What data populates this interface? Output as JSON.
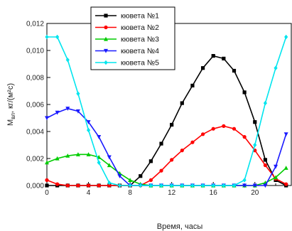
{
  "chart_data": {
    "type": "line",
    "xlabel": "Время, часы",
    "ylabel_main": "M",
    "ylabel_sub": "вл",
    "ylabel_units": ", кг/(м²с)",
    "xlim": [
      0,
      23.5
    ],
    "ylim": [
      0,
      0.012
    ],
    "xticks": [
      "0",
      "4",
      "8",
      "12",
      "16",
      "20"
    ],
    "xtick_values": [
      0,
      4,
      8,
      12,
      16,
      20
    ],
    "yticks": [
      "0,000",
      "0,002",
      "0,004",
      "0,006",
      "0,008",
      "0,010",
      "0,012"
    ],
    "ytick_values": [
      0,
      0.002,
      0.004,
      0.006,
      0.008,
      0.01,
      0.012
    ],
    "minor_x_step": 1,
    "grid": false,
    "legend_position": "top-center",
    "x": [
      0,
      1,
      2,
      3,
      4,
      5,
      6,
      7,
      8,
      9,
      10,
      11,
      12,
      13,
      14,
      15,
      16,
      17,
      18,
      19,
      20,
      21,
      22,
      23
    ],
    "series": [
      {
        "name": "кювета №1",
        "color": "#000000",
        "marker": "square",
        "values": [
          0,
          0,
          0,
          0,
          0,
          0,
          0,
          0,
          0,
          0.0007,
          0.0018,
          0.0031,
          0.0045,
          0.0061,
          0.0074,
          0.0087,
          0.0096,
          0.0094,
          0.0085,
          0.0069,
          0.0047,
          0.0019,
          0.0004,
          0
        ]
      },
      {
        "name": "кювета №2",
        "color": "#ff0000",
        "marker": "circle",
        "values": [
          0.0004,
          0.0001,
          0,
          0,
          0,
          0,
          0,
          0,
          0,
          0,
          0.0004,
          0.0011,
          0.0019,
          0.0026,
          0.0032,
          0.0038,
          0.0042,
          0.0044,
          0.0042,
          0.0036,
          0.0026,
          0.0015,
          0.0005,
          0.0001
        ]
      },
      {
        "name": "кювета №3",
        "color": "#00cc00",
        "marker": "triangle-up",
        "values": [
          0.0017,
          0.002,
          0.0022,
          0.0023,
          0.0023,
          0.0021,
          0.0015,
          0.0009,
          0.0004,
          0.0001,
          0,
          0,
          0,
          0,
          0,
          0,
          0,
          0,
          0,
          0,
          0,
          0.0002,
          0.0006,
          0.0013
        ]
      },
      {
        "name": "кювета №4",
        "color": "#1a1aff",
        "marker": "triangle-down",
        "values": [
          0.005,
          0.0054,
          0.0057,
          0.0055,
          0.0047,
          0.0036,
          0.0021,
          0.0007,
          0,
          0,
          0,
          0,
          0,
          0,
          0,
          0,
          0,
          0,
          0,
          0,
          0,
          0,
          0.0014,
          0.0038
        ]
      },
      {
        "name": "кювета №5",
        "color": "#00e5ee",
        "marker": "diamond",
        "values": [
          0.011,
          0.011,
          0.0093,
          0.0068,
          0.0041,
          0.0017,
          0.0002,
          0,
          0,
          0,
          0,
          0,
          0,
          0,
          0,
          0,
          0,
          0,
          0,
          0.0004,
          0.003,
          0.0061,
          0.0087,
          0.011
        ]
      }
    ]
  }
}
